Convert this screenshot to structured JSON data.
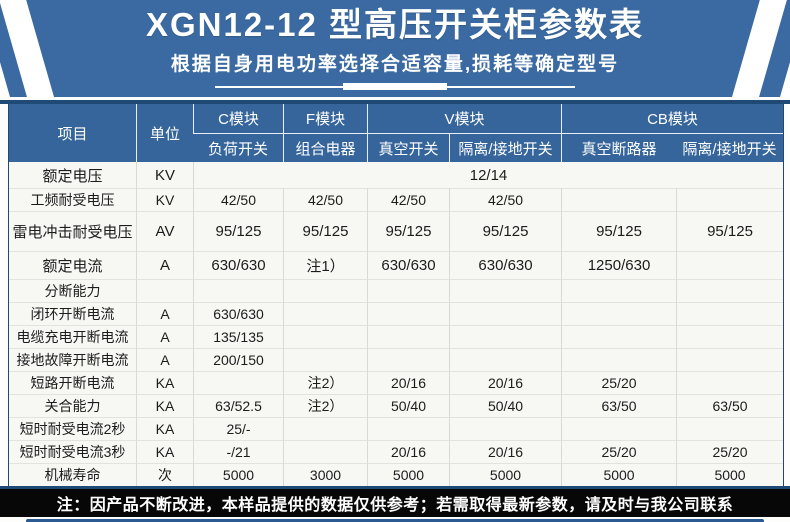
{
  "banner": {
    "title": "XGN12-12 型高压开关柜参数表",
    "subtitle": "根据自身用电功率选择合适容量,损耗等确定型号"
  },
  "colors": {
    "banner_blue": "#3a6aa1",
    "header_blue": "#35659b",
    "frame_navy": "#1e4a75",
    "note_black": "#070707",
    "strip_blue": "#2a5a91"
  },
  "table": {
    "header": {
      "col_item": "项目",
      "col_unit": "单位",
      "groups": [
        {
          "label": "C模块",
          "subs": [
            "负荷开关"
          ]
        },
        {
          "label": "F模块",
          "subs": [
            "组合电器"
          ]
        },
        {
          "label": "V模块",
          "subs": [
            "真空开关",
            "隔离/接地开关"
          ]
        },
        {
          "label": "CB模块",
          "subs": [
            "真空断路器",
            "隔离/接地开关"
          ]
        }
      ]
    },
    "rows": [
      {
        "label": "额定电压",
        "unit": "KV",
        "merged": "12/14"
      },
      {
        "label": "工频耐受电压",
        "unit": "KV",
        "values": [
          "42/50",
          "42/50",
          "42/50",
          "42/50",
          "",
          ""
        ]
      },
      {
        "label": "雷电冲击耐受电压",
        "unit": "AV",
        "values": [
          "95/125",
          "95/125",
          "95/125",
          "95/125",
          "95/125",
          "95/125"
        ]
      },
      {
        "label": "额定电流",
        "unit": "A",
        "values": [
          "630/630",
          "注1）",
          "630/630",
          "630/630",
          "1250/630",
          ""
        ]
      },
      {
        "label": "分断能力",
        "unit": "",
        "values": [
          "",
          "",
          "",
          "",
          "",
          ""
        ]
      },
      {
        "label": "闭环开断电流",
        "unit": "A",
        "values": [
          "630/630",
          "",
          "",
          "",
          "",
          ""
        ]
      },
      {
        "label": "电缆充电开断电流",
        "unit": "A",
        "values": [
          "135/135",
          "",
          "",
          "",
          "",
          ""
        ]
      },
      {
        "label": "接地故障开断电流",
        "unit": "A",
        "values": [
          "200/150",
          "",
          "",
          "",
          "",
          ""
        ]
      },
      {
        "label": "短路开断电流",
        "unit": "KA",
        "values": [
          "",
          "注2）",
          "20/16",
          "20/16",
          "25/20",
          ""
        ]
      },
      {
        "label": "关合能力",
        "unit": "KA",
        "values": [
          "63/52.5",
          "注2）",
          "50/40",
          "50/40",
          "63/50",
          "63/50"
        ]
      },
      {
        "label": "短时耐受电流2秒",
        "unit": "KA",
        "values": [
          "25/-",
          "",
          "",
          "",
          "",
          ""
        ]
      },
      {
        "label": "短时耐受电流3秒",
        "unit": "KA",
        "values": [
          "-/21",
          "",
          "20/16",
          "20/16",
          "25/20",
          "25/20"
        ]
      },
      {
        "label": "机械寿命",
        "unit": "次",
        "values": [
          "5000",
          "3000",
          "5000",
          "5000",
          "5000",
          "5000"
        ]
      }
    ]
  },
  "note": {
    "text": "注：因产品不断改进，本样品提供的数据仅供参考；若需取得最新参数，请及时与我公司联系"
  }
}
